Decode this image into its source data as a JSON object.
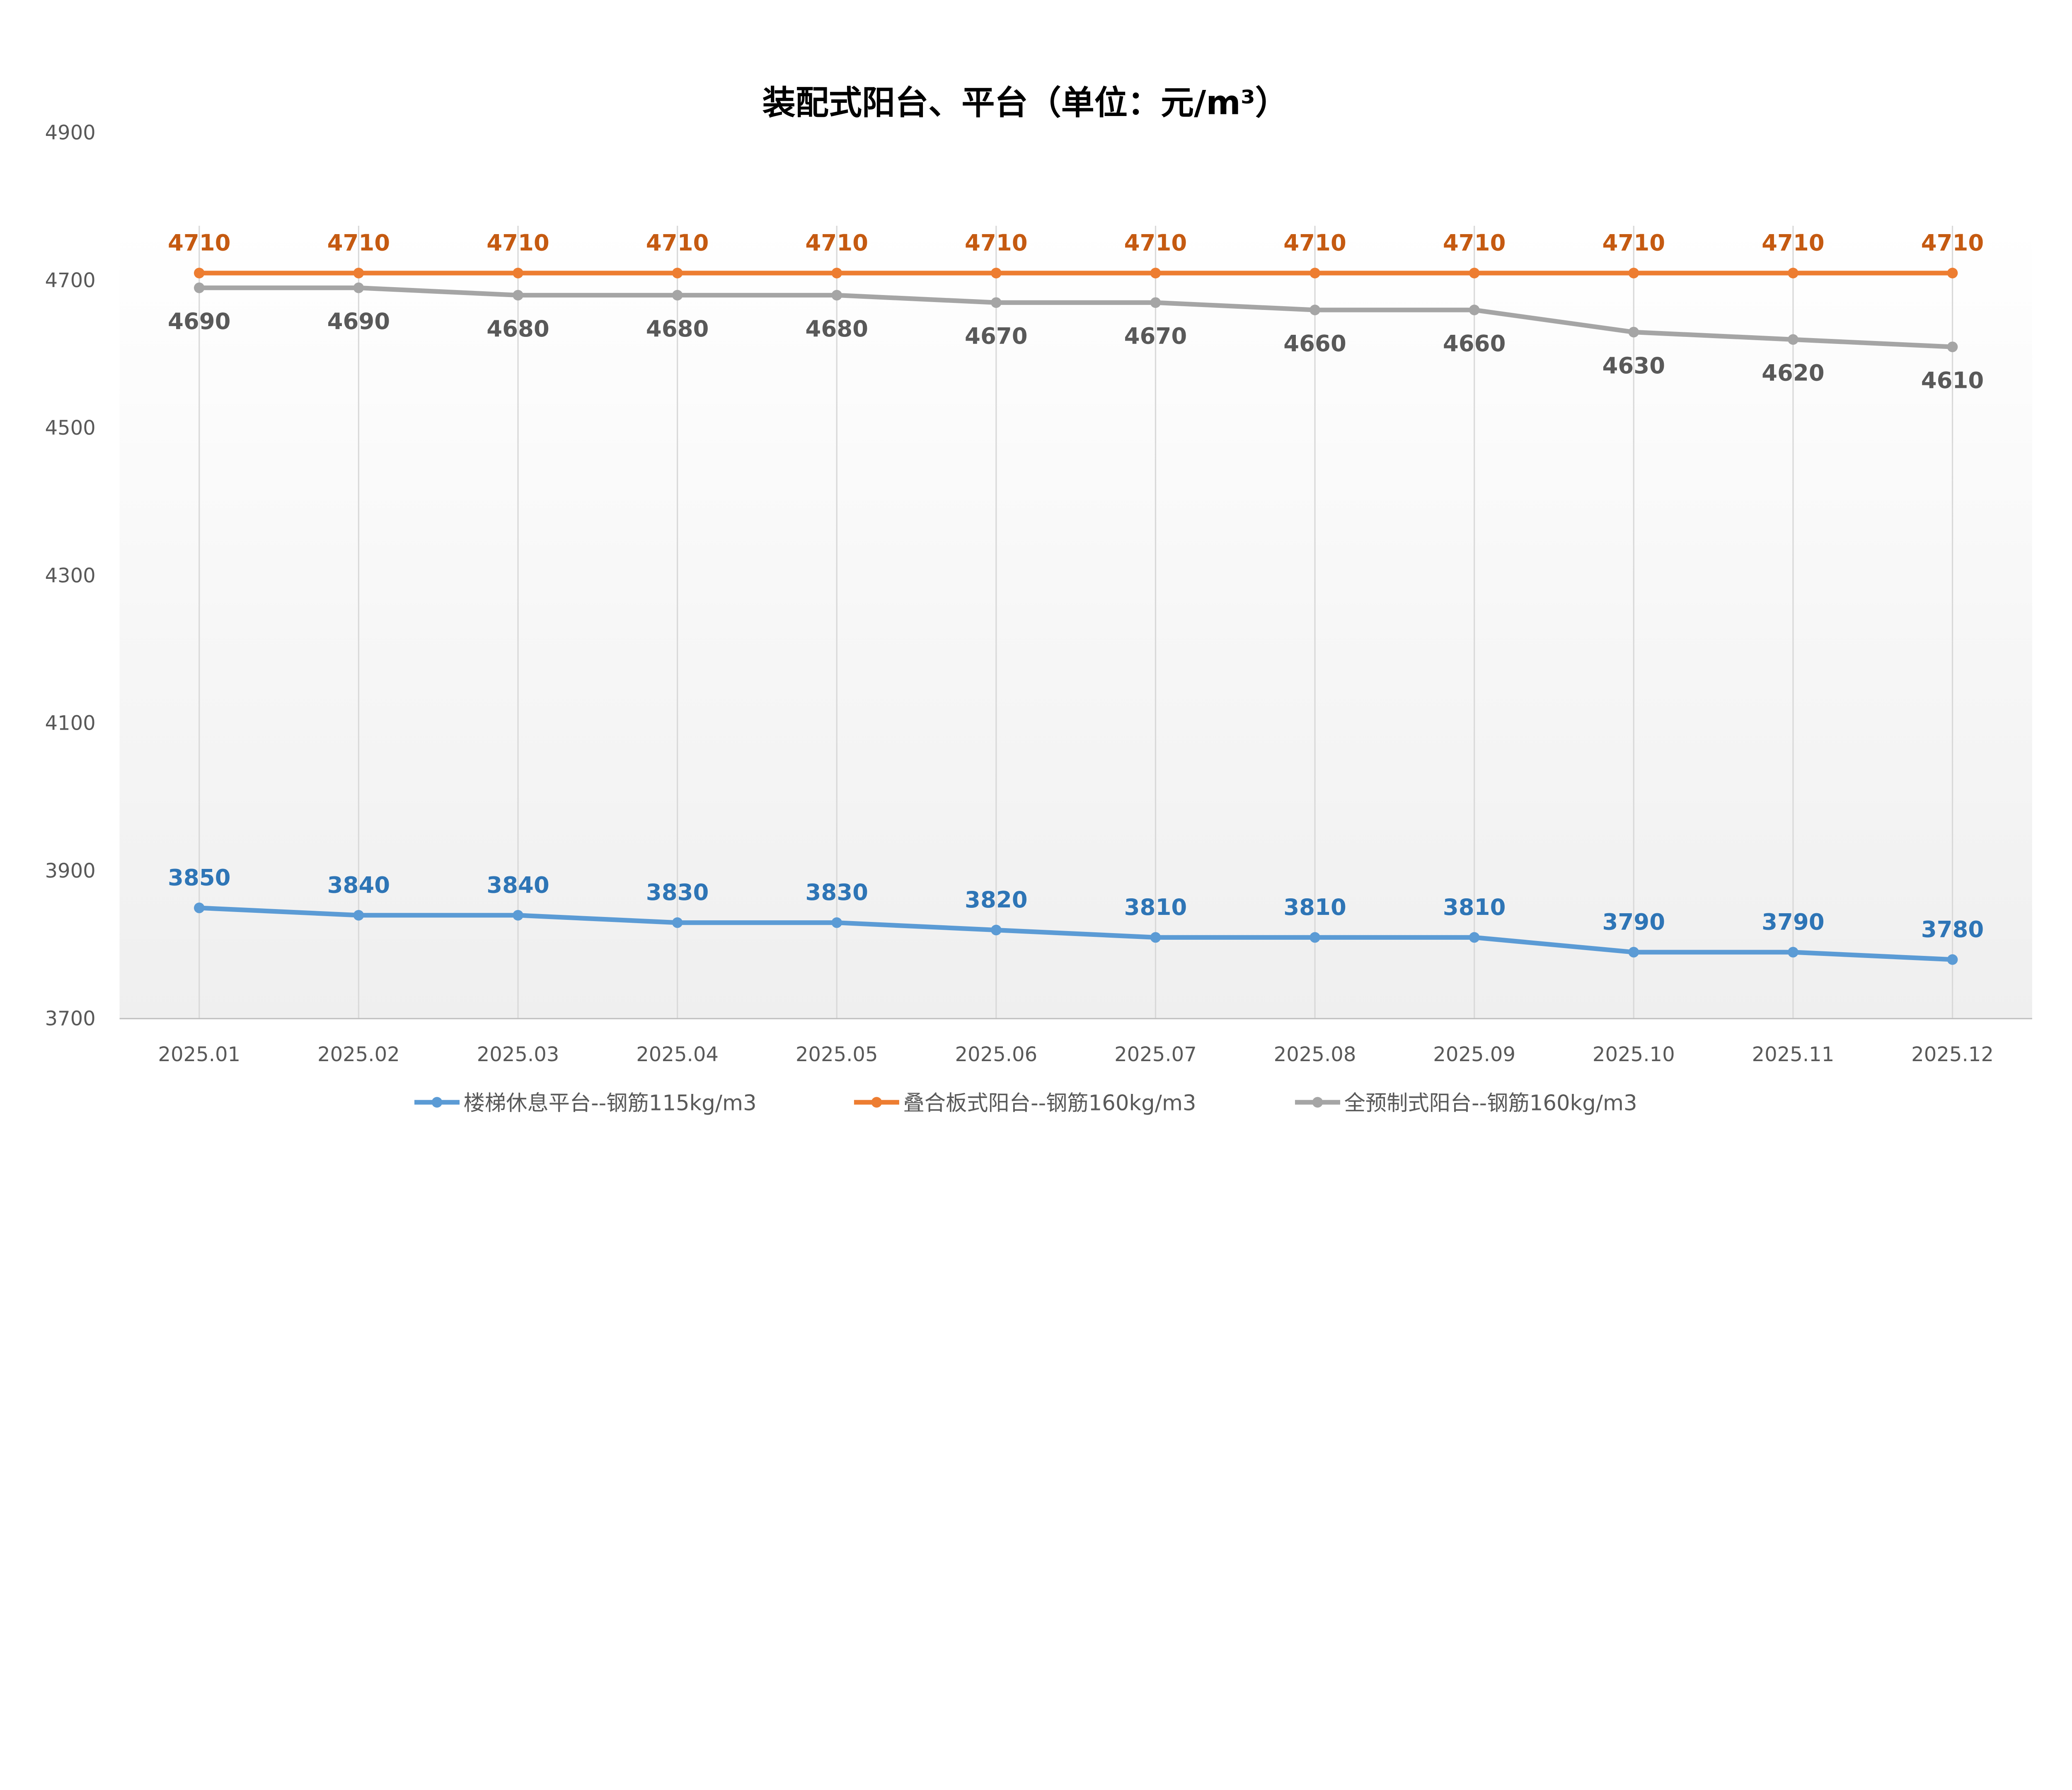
{
  "chart_data": {
    "type": "line",
    "title": "装配式阳台、平台（单位：元/m³）",
    "xlabel": "",
    "ylabel": "",
    "categories": [
      "2025.01",
      "2025.02",
      "2025.03",
      "2025.04",
      "2025.05",
      "2025.06",
      "2025.07",
      "2025.08",
      "2025.09",
      "2025.10",
      "2025.11",
      "2025.12"
    ],
    "ylim": [
      3700,
      4900
    ],
    "yticks": [
      3700,
      3900,
      4100,
      4300,
      4500,
      4700,
      4900
    ],
    "grid": "vertical",
    "legend": "bottom",
    "series": [
      {
        "name": "楼梯休息平台--钢筋115kg/m3",
        "color": "#5B9BD5",
        "label_color": "#2E75B6",
        "label_pos": "above",
        "values": [
          3850,
          3840,
          3840,
          3830,
          3830,
          3820,
          3810,
          3810,
          3810,
          3790,
          3790,
          3780
        ]
      },
      {
        "name": "叠合板式阳台--钢筋160kg/m3",
        "color": "#ED7D31",
        "label_color": "#C55A11",
        "label_pos": "above",
        "values": [
          4710,
          4710,
          4710,
          4710,
          4710,
          4710,
          4710,
          4710,
          4710,
          4710,
          4710,
          4710
        ]
      },
      {
        "name": "全预制式阳台--钢筋160kg/m3",
        "color": "#A5A5A5",
        "label_color": "#595959",
        "label_pos": "below",
        "values": [
          4690,
          4690,
          4680,
          4680,
          4680,
          4670,
          4670,
          4660,
          4660,
          4630,
          4620,
          4610
        ]
      }
    ]
  }
}
